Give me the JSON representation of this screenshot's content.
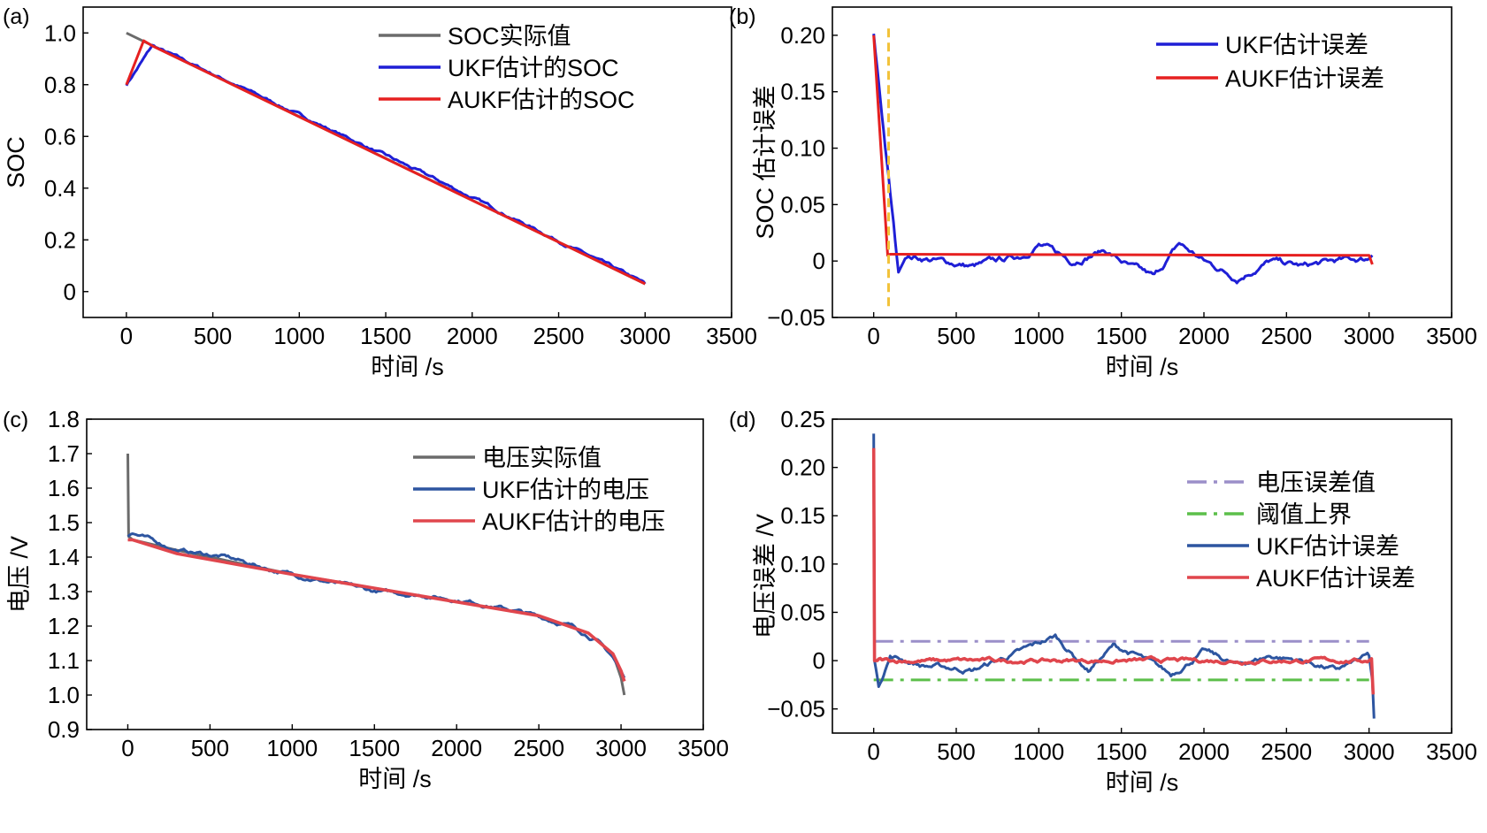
{
  "colors": {
    "actual": "#6b6b6b",
    "ukf_top": "#1f1fd6",
    "aukf_top": "#e62020",
    "ukf_bottom": "#2d55a0",
    "aukf_bottom": "#e0464d",
    "limit_b": "#f2c23a",
    "err_value": "#9b8fc9",
    "threshold": "#5cbf4a"
  },
  "chart_data": [
    {
      "id": "a",
      "panel_label": "(a)",
      "type": "line",
      "xlabel": "时间 /s",
      "ylabel": "SOC",
      "xlim": [
        -250,
        3500
      ],
      "ylim": [
        -0.1,
        1.1
      ],
      "xticks": [
        0,
        500,
        1000,
        1500,
        2000,
        2500,
        3000,
        3500
      ],
      "yticks": [
        0,
        0.2,
        0.4,
        0.6,
        0.8,
        1.0
      ],
      "ytick_labels": [
        "0",
        "0.2",
        "0.4",
        "0.6",
        "0.8",
        "1.0"
      ],
      "legend": {
        "position": "top-right",
        "entries": [
          "SOC实际值",
          "UKF估计的SOC",
          "AUKF估计的SOC"
        ]
      },
      "series": [
        {
          "name": "SOC实际值",
          "color_key": "actual",
          "x": [
            0,
            3000
          ],
          "y": [
            1.0,
            0.03
          ]
        },
        {
          "name": "UKF估计的SOC",
          "color_key": "ukf_top",
          "x": [
            0,
            150,
            600,
            1200,
            1800,
            2400,
            3000
          ],
          "y": [
            0.8,
            0.95,
            0.81,
            0.62,
            0.43,
            0.23,
            0.03
          ],
          "noise": 0.008
        },
        {
          "name": "AUKF估计的SOC",
          "color_key": "aukf_top",
          "x": [
            0,
            100,
            150,
            3000
          ],
          "y": [
            0.8,
            0.97,
            0.95,
            0.03
          ]
        }
      ]
    },
    {
      "id": "b",
      "panel_label": "(b)",
      "type": "line",
      "xlabel": "时间 /s",
      "ylabel": "SOC 估计误差",
      "xlim": [
        -250,
        3500
      ],
      "ylim": [
        -0.05,
        0.225
      ],
      "xticks": [
        0,
        500,
        1000,
        1500,
        2000,
        2500,
        3000,
        3500
      ],
      "yticks": [
        -0.05,
        0,
        0.05,
        0.1,
        0.15,
        0.2
      ],
      "ytick_labels": [
        "−0.05",
        "0",
        "0.05",
        "0.10",
        "0.15",
        "0.20"
      ],
      "legend": {
        "position": "top-right",
        "entries": [
          "UKF估计误差",
          "AUKF估计误差"
        ]
      },
      "series": [
        {
          "name": "UKF估计误差",
          "color_key": "ukf_top",
          "x": [
            0,
            150,
            200,
            400,
            600,
            900,
            1000,
            1200,
            1400,
            1550,
            1700,
            1850,
            2000,
            2200,
            2400,
            2600,
            2800,
            3000,
            3020
          ],
          "y": [
            0.2,
            -0.01,
            0.005,
            0.0,
            -0.005,
            0.005,
            0.015,
            0.0,
            0.01,
            -0.005,
            -0.015,
            0.015,
            0.0,
            -0.015,
            0.0,
            -0.005,
            0.0,
            0.002,
            0.005
          ],
          "noise": 0.004
        },
        {
          "name": "AUKF估计误差",
          "color_key": "aukf_top",
          "x": [
            0,
            85,
            100,
            3000,
            3020
          ],
          "y": [
            0.2,
            0.005,
            0.006,
            0.005,
            -0.003
          ]
        },
        {
          "name": "limit",
          "color_key": "limit_b",
          "style": "dashed",
          "x": [
            90,
            90
          ],
          "y": [
            -0.04,
            0.21
          ]
        }
      ]
    },
    {
      "id": "c",
      "panel_label": "(c)",
      "type": "line",
      "xlabel": "时间 /s",
      "ylabel": "电压 /V",
      "xlim": [
        -250,
        3500
      ],
      "ylim": [
        0.9,
        1.8
      ],
      "xticks": [
        0,
        500,
        1000,
        1500,
        2000,
        2500,
        3000,
        3500
      ],
      "yticks": [
        0.9,
        1.0,
        1.1,
        1.2,
        1.3,
        1.4,
        1.5,
        1.6,
        1.7,
        1.8
      ],
      "ytick_labels": [
        "0.9",
        "1.0",
        "1.1",
        "1.2",
        "1.3",
        "1.4",
        "1.5",
        "1.6",
        "1.7",
        "1.8"
      ],
      "legend": {
        "position": "top-right",
        "entries": [
          "电压实际值",
          "UKF估计的电压",
          "AUKF估计的电压"
        ]
      },
      "series": [
        {
          "name": "电压实际值",
          "color_key": "actual",
          "x": [
            0,
            5,
            30,
            300,
            1000,
            1500,
            2000,
            2500,
            2800,
            2950,
            3000,
            3020
          ],
          "y": [
            1.7,
            1.46,
            1.45,
            1.42,
            1.35,
            1.31,
            1.27,
            1.23,
            1.18,
            1.12,
            1.05,
            1.0
          ]
        },
        {
          "name": "UKF估计的电压",
          "color_key": "ukf_bottom",
          "x": [
            0,
            30,
            300,
            600,
            900,
            1200,
            1500,
            1800,
            2100,
            2400,
            2700,
            2850,
            2950,
            3000,
            3020
          ],
          "y": [
            1.46,
            1.47,
            1.42,
            1.4,
            1.36,
            1.33,
            1.3,
            1.29,
            1.27,
            1.24,
            1.2,
            1.16,
            1.11,
            1.07,
            1.05
          ],
          "noise": 0.008
        },
        {
          "name": "AUKF估计的电压",
          "color_key": "aukf_bottom",
          "x": [
            0,
            30,
            300,
            1000,
            1500,
            2000,
            2500,
            2800,
            2950,
            3000,
            3020
          ],
          "y": [
            1.45,
            1.45,
            1.41,
            1.35,
            1.31,
            1.27,
            1.23,
            1.18,
            1.12,
            1.07,
            1.04
          ]
        }
      ]
    },
    {
      "id": "d",
      "panel_label": "(d)",
      "type": "line",
      "xlabel": "时间 /s",
      "ylabel": "电压误差 /V",
      "xlim": [
        -250,
        3500
      ],
      "ylim": [
        -0.075,
        0.25
      ],
      "xticks": [
        0,
        500,
        1000,
        1500,
        2000,
        2500,
        3000,
        3500
      ],
      "yticks": [
        -0.05,
        0,
        0.05,
        0.1,
        0.15,
        0.2,
        0.25
      ],
      "ytick_labels": [
        "−0.05",
        "0",
        "0.05",
        "0.10",
        "0.15",
        "0.20",
        "0.25"
      ],
      "legend": {
        "position": "right",
        "entries": [
          "电压误差值",
          "阈值上界",
          "UKF估计误差",
          "AUKF估计误差"
        ]
      },
      "series": [
        {
          "name": "电压误差值",
          "color_key": "err_value",
          "style": "dashdot",
          "x": [
            0,
            3000
          ],
          "y": [
            0.02,
            0.02
          ]
        },
        {
          "name": "阈值上界",
          "color_key": "threshold",
          "style": "dashdot",
          "x": [
            0,
            3000
          ],
          "y": [
            -0.02,
            -0.02
          ]
        },
        {
          "name": "UKF估计误差",
          "color_key": "ukf_bottom",
          "x": [
            0,
            5,
            30,
            100,
            300,
            600,
            900,
            1100,
            1300,
            1450,
            1600,
            1800,
            2000,
            2200,
            2400,
            2600,
            2800,
            3000,
            3020,
            3030
          ],
          "y": [
            0.235,
            0.0,
            -0.025,
            0.005,
            -0.005,
            -0.01,
            0.01,
            0.025,
            -0.01,
            0.015,
            0.005,
            -0.015,
            0.01,
            -0.005,
            0.005,
            0.0,
            -0.01,
            0.005,
            -0.02,
            -0.06
          ],
          "noise": 0.004
        },
        {
          "name": "AUKF估计误差",
          "color_key": "aukf_bottom",
          "x": [
            0,
            5,
            30,
            3000,
            3015,
            3025
          ],
          "y": [
            0.22,
            0.0,
            0.0,
            0.0,
            0.002,
            -0.035
          ],
          "noise": 0.003
        }
      ]
    }
  ]
}
